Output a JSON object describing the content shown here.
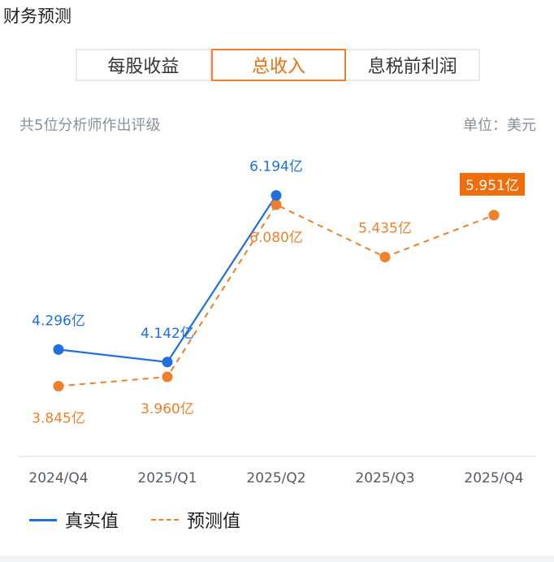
{
  "header": {
    "title": "财务预测"
  },
  "tabs": [
    {
      "label": "每股收益",
      "active": false
    },
    {
      "label": "总收入",
      "active": true
    },
    {
      "label": "息税前利润",
      "active": false
    }
  ],
  "subtitle": "共5位分析师作出评级",
  "unit": "单位：美元",
  "colors": {
    "actual": "#1f6fdc",
    "forecast": "#ef7f2a",
    "accent": "#ef6d0a"
  },
  "chart_data": {
    "type": "line",
    "categories": [
      "2024/Q4",
      "2025/Q1",
      "2025/Q2",
      "2025/Q3",
      "2025/Q4"
    ],
    "series": [
      {
        "name": "真实值",
        "values": [
          4.296,
          4.142,
          6.194,
          null,
          null
        ],
        "labels": [
          "4.296亿",
          "4.142亿",
          "6.194亿",
          "",
          ""
        ]
      },
      {
        "name": "预测值",
        "values": [
          3.845,
          3.96,
          6.08,
          5.435,
          5.951
        ],
        "labels": [
          "3.845亿",
          "3.960亿",
          "6.080亿",
          "5.435亿",
          "5.951亿"
        ]
      }
    ],
    "ylim": [
      3.0,
      6.7
    ],
    "grid": false,
    "legend": "bottom-left"
  }
}
